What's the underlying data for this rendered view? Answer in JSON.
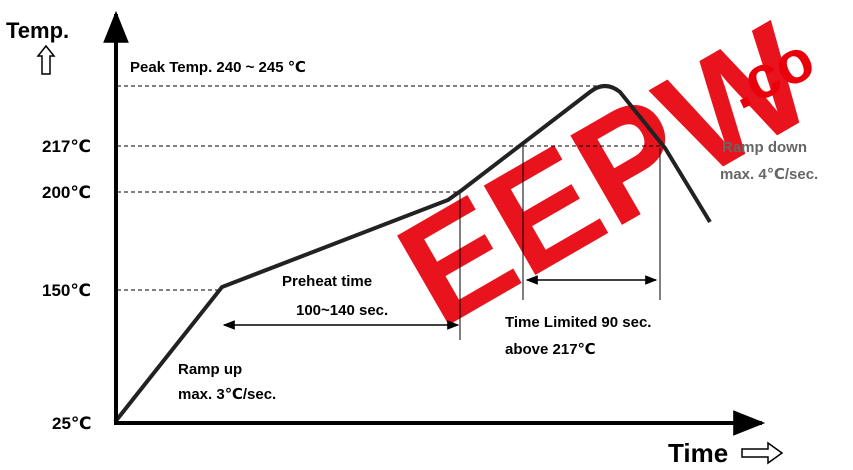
{
  "axes": {
    "y_label": "Temp.",
    "x_label": "Time"
  },
  "temperatures": [
    "25℃",
    "150℃",
    "200℃",
    "217℃"
  ],
  "annotations": {
    "peak": "Peak Temp. 240 ~ 245 ℃",
    "preheat": [
      "Preheat time",
      "100~140 sec."
    ],
    "ramp_up": [
      "Ramp up",
      "max. 3℃/sec."
    ],
    "time_limited": [
      "Time Limited 90 sec.",
      "above 217℃"
    ],
    "ramp_down": [
      "Ramp down",
      "max. 4℃/sec."
    ]
  },
  "watermark": [
    "EEPW",
    ".co"
  ]
}
